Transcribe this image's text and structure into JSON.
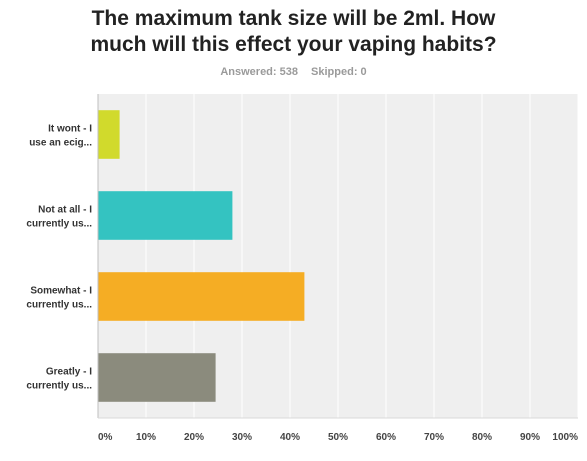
{
  "header": {
    "title_line1": "The maximum tank size will be 2ml. How",
    "title_line2": "much will this effect your vaping habits?",
    "answered": "Answered: 538",
    "skipped": "Skipped: 0"
  },
  "chart_data": {
    "type": "bar",
    "orientation": "horizontal",
    "categories": [
      [
        "It wont - I",
        "use an ecig..."
      ],
      [
        "Not at all - I",
        "currently us..."
      ],
      [
        "Somewhat - I",
        "currently us..."
      ],
      [
        "Greatly - I",
        "currently us..."
      ]
    ],
    "values": [
      4.5,
      28,
      43,
      24.5
    ],
    "colors": [
      "#d1da2c",
      "#34c3c1",
      "#f5ad24",
      "#8b8b7d"
    ],
    "xlim": [
      0,
      100
    ],
    "xticks": [
      "0%",
      "10%",
      "20%",
      "30%",
      "40%",
      "50%",
      "60%",
      "70%",
      "80%",
      "90%",
      "100%"
    ],
    "grid": true,
    "plot_background": "#efefef"
  }
}
